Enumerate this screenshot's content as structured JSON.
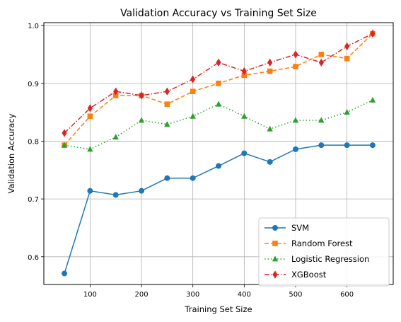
{
  "chart_data": {
    "type": "line",
    "title": "Validation Accuracy vs Training Set Size",
    "xlabel": "Training Set Size",
    "ylabel": "Validation Accuracy",
    "x": [
      50,
      100,
      150,
      200,
      250,
      300,
      350,
      400,
      450,
      500,
      550,
      600,
      650
    ],
    "xlim": [
      10,
      690
    ],
    "ylim": [
      0.552,
      1.005
    ],
    "xticks": [
      100,
      200,
      300,
      400,
      500,
      600
    ],
    "yticks": [
      0.6,
      0.7,
      0.8,
      0.9,
      1.0
    ],
    "ytick_labels": [
      "0.6",
      "0.7",
      "0.8",
      "0.9",
      "1.0"
    ],
    "grid": true,
    "legend_position": "lower-right",
    "series": [
      {
        "name": "SVM",
        "color": "#1f77b4",
        "line_style": "solid",
        "marker": "circle",
        "values": [
          0.571,
          0.714,
          0.707,
          0.714,
          0.736,
          0.736,
          0.757,
          0.779,
          0.764,
          0.786,
          0.793,
          0.793,
          0.793
        ]
      },
      {
        "name": "Random Forest",
        "color": "#ff7f0e",
        "line_style": "dashed",
        "marker": "square",
        "values": [
          0.793,
          0.843,
          0.879,
          0.879,
          0.864,
          0.886,
          0.9,
          0.914,
          0.921,
          0.929,
          0.95,
          0.943,
          0.986
        ]
      },
      {
        "name": "Logistic Regression",
        "color": "#2ca02c",
        "line_style": "dotted",
        "marker": "triangle",
        "values": [
          0.793,
          0.786,
          0.807,
          0.836,
          0.829,
          0.843,
          0.864,
          0.843,
          0.821,
          0.836,
          0.836,
          0.85,
          0.871
        ]
      },
      {
        "name": "XGBoost",
        "color": "#d62728",
        "line_style": "dashdot",
        "marker": "diamond",
        "values": [
          0.814,
          0.857,
          0.886,
          0.879,
          0.886,
          0.907,
          0.936,
          0.921,
          0.936,
          0.95,
          0.936,
          0.964,
          0.986
        ]
      }
    ]
  }
}
